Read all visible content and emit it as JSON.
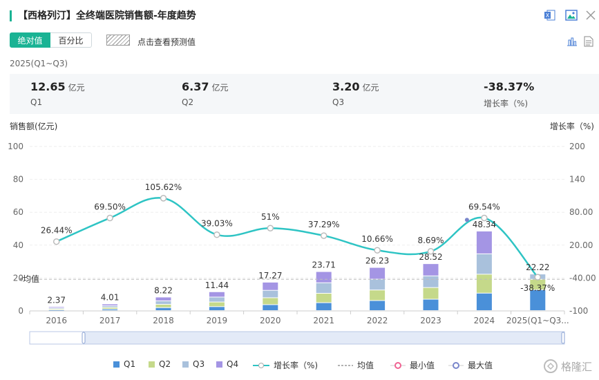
{
  "header": {
    "title": "【西格列汀】全终端医院销售额-年度趋势",
    "icons": [
      "excel-icon",
      "image-icon",
      "close-icon",
      "bar-chart-icon",
      "document-icon"
    ]
  },
  "controls": {
    "absolute_label": "绝对值",
    "percent_label": "百分比",
    "predict_label": "点击查看预测值"
  },
  "period_label": "2025(Q1~Q3)",
  "summary": [
    {
      "value": "12.65",
      "unit": "亿元",
      "label": "Q1"
    },
    {
      "value": "6.37",
      "unit": "亿元",
      "label": "Q2"
    },
    {
      "value": "3.20",
      "unit": "亿元",
      "label": "Q3"
    },
    {
      "value": "-38.37%",
      "unit": "",
      "label": "增长率（%)"
    }
  ],
  "colors": {
    "accent": "#1ab394",
    "q1": "#4a90d9",
    "q2": "#c5d98a",
    "q3": "#a9c1dc",
    "q4": "#a495e4",
    "growth_line": "#2ec4c4",
    "avg_line": "#bbbbbb",
    "min_marker": "#f06292",
    "max_marker": "#7986cb"
  },
  "chart_data": {
    "type": "bar",
    "stacked": true,
    "categories": [
      "2016",
      "2017",
      "2018",
      "2019",
      "2020",
      "2021",
      "2022",
      "2023",
      "2024",
      "2025(Q1~Q3..."
    ],
    "ylabel": "销售额(亿元)",
    "y2label": "增长率（%)",
    "ylim": [
      0,
      100
    ],
    "yticks": [
      0,
      20,
      40,
      60,
      80,
      100
    ],
    "y2lim": [
      -100,
      200
    ],
    "y2ticks": [
      "-100",
      "-40.00",
      "20.00",
      "80.00",
      "140",
      "200"
    ],
    "totals": [
      2.37,
      4.01,
      8.22,
      11.44,
      17.27,
      23.71,
      26.23,
      28.52,
      48.34,
      22.22
    ],
    "total_labels": [
      "2.37",
      "4.01",
      "8.22",
      "11.44",
      "17.27",
      "23.71",
      "26.23",
      "28.52",
      "48.34",
      "22.22"
    ],
    "series": [
      {
        "name": "Q1",
        "values": [
          0.4,
          0.9,
          1.8,
          2.4,
          3.6,
          4.8,
          6.1,
          6.9,
          10.6,
          12.65
        ]
      },
      {
        "name": "Q2",
        "values": [
          0.6,
          1.0,
          2.0,
          2.8,
          4.2,
          5.7,
          6.4,
          7.1,
          11.5,
          6.37
        ]
      },
      {
        "name": "Q3",
        "values": [
          0.6,
          1.0,
          2.1,
          3.0,
          4.5,
          6.4,
          6.6,
          7.1,
          12.4,
          3.2
        ]
      },
      {
        "name": "Q4",
        "values": [
          0.77,
          1.11,
          2.32,
          3.24,
          4.97,
          6.81,
          7.13,
          7.42,
          13.84,
          0
        ]
      }
    ],
    "growth": {
      "name": "增长率（%)",
      "values": [
        26.44,
        69.5,
        105.62,
        39.03,
        51,
        37.29,
        10.66,
        8.69,
        69.54,
        -38.37
      ],
      "labels": [
        "26.44%",
        "69.50%",
        "105.62%",
        "39.03%",
        "51%",
        "37.29%",
        "10.66%",
        "8.69%",
        "69.54%",
        "-38.37%"
      ]
    },
    "average": {
      "name": "均值",
      "label": "均值",
      "value": 19.23
    },
    "legend_position": "bottom",
    "legend": [
      "Q1",
      "Q2",
      "Q3",
      "Q4",
      "增长率（%)",
      "均值",
      "最小值",
      "最大值"
    ]
  },
  "legend_labels": {
    "q1": "Q1",
    "q2": "Q2",
    "q3": "Q3",
    "q4": "Q4",
    "growth": "增长率（%)",
    "avg": "均值",
    "min": "最小值",
    "max": "最大值"
  },
  "watermark": "格隆汇"
}
